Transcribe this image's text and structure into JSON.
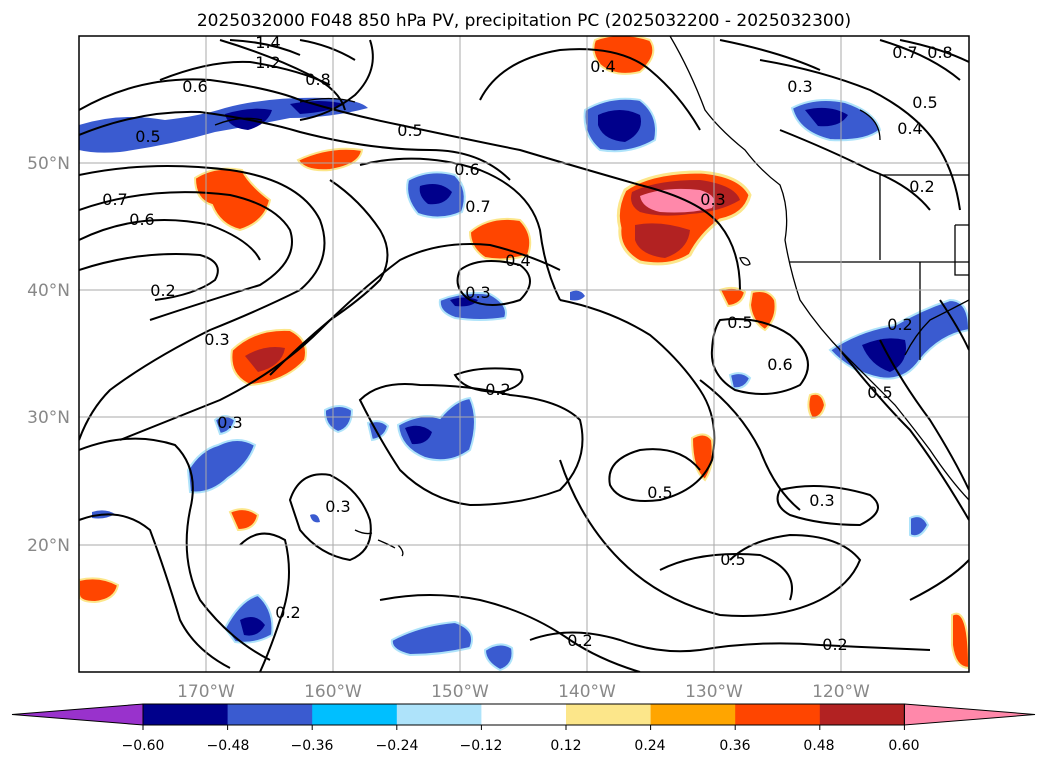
{
  "title": "2025032000 F048 850 hPa PV, precipitation PC (2025032200 - 2025032300)",
  "map": {
    "lon_ticks": [
      "170°W",
      "160°W",
      "150°W",
      "140°W",
      "130°W",
      "120°W"
    ],
    "lat_ticks": [
      "50°N",
      "40°N",
      "30°N",
      "20°N"
    ],
    "contour_labels": [
      "1.4",
      "1.2",
      "0.8",
      "0.7",
      "0.8",
      "0.6",
      "0.5",
      "0.5",
      "0.4",
      "0.3",
      "0.5",
      "0.4",
      "0.2",
      "0.7",
      "0.6",
      "0.6",
      "0.7",
      "0.3",
      "0.4",
      "0.2",
      "0.3",
      "0.3",
      "0.5",
      "0.2",
      "0.6",
      "0.5",
      "0.2",
      "0.3",
      "0.3",
      "0.5",
      "0.3",
      "0.5",
      "0.2",
      "0.2",
      "0.2"
    ]
  },
  "colorbar": {
    "tick_labels": [
      "−0.60",
      "−0.48",
      "−0.36",
      "−0.24",
      "−0.12",
      "0.12",
      "0.24",
      "0.36",
      "0.48",
      "0.60"
    ],
    "colors": [
      "#9932cc",
      "#00008b",
      "#3a5bd0",
      "#00bfff",
      "#aee3fa",
      "#ffffff",
      "#fce68a",
      "#ffa500",
      "#ff4500",
      "#b22222",
      "#ff88aa"
    ]
  }
}
